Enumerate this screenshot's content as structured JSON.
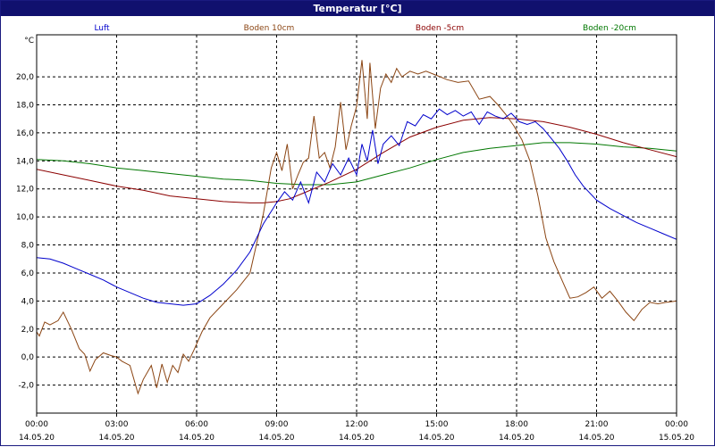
{
  "window": {
    "title": "Temperatur [°C]"
  },
  "chart_data": {
    "type": "line",
    "title": "Temperatur [°C]",
    "ylabel": "°C",
    "xlabel": "",
    "ylim": [
      -4,
      23
    ],
    "xlim": [
      0,
      24
    ],
    "grid": true,
    "legend_position": "top",
    "yticks": [
      -2,
      0,
      2,
      4,
      6,
      8,
      10,
      12,
      14,
      16,
      18,
      20
    ],
    "ytick_labels": [
      "-2,0",
      "0,0",
      "2,0",
      "4,0",
      "6,0",
      "8,0",
      "10,0",
      "12,0",
      "14,0",
      "16,0",
      "18,0",
      "20,0"
    ],
    "xticks": [
      0,
      3,
      6,
      9,
      12,
      15,
      18,
      21,
      24
    ],
    "xtick_time_labels": [
      "00:00",
      "03:00",
      "06:00",
      "09:00",
      "12:00",
      "15:00",
      "18:00",
      "21:00",
      "00:00"
    ],
    "xtick_date_labels": [
      "14.05.20",
      "14.05.20",
      "14.05.20",
      "14.05.20",
      "14.05.20",
      "14.05.20",
      "14.05.20",
      "14.05.20",
      "15.05.20"
    ],
    "series": [
      {
        "name": "Luft",
        "color": "#0000cc",
        "x": [
          0,
          0.5,
          1,
          1.5,
          2,
          2.5,
          3,
          3.5,
          4,
          4.5,
          5,
          5.5,
          6,
          6.5,
          7,
          7.5,
          8,
          8.5,
          9,
          9.3,
          9.6,
          9.9,
          10.2,
          10.5,
          10.8,
          11.1,
          11.4,
          11.7,
          12,
          12.2,
          12.4,
          12.6,
          12.8,
          13,
          13.3,
          13.6,
          13.9,
          14.2,
          14.5,
          14.8,
          15.1,
          15.4,
          15.7,
          16,
          16.3,
          16.6,
          16.9,
          17.2,
          17.5,
          17.8,
          18.1,
          18.4,
          18.7,
          19,
          19.3,
          19.6,
          19.9,
          20.2,
          20.5,
          21,
          21.5,
          22,
          22.5,
          23,
          23.5,
          24
        ],
        "values": [
          7.1,
          7.0,
          6.7,
          6.3,
          5.9,
          5.5,
          5.0,
          4.6,
          4.2,
          3.9,
          3.8,
          3.7,
          3.8,
          4.4,
          5.2,
          6.2,
          7.5,
          9.5,
          11.0,
          11.8,
          11.2,
          12.5,
          11.0,
          13.2,
          12.5,
          13.8,
          13.0,
          14.2,
          13.0,
          15.2,
          14.0,
          16.2,
          13.8,
          15.2,
          15.8,
          15.1,
          16.8,
          16.5,
          17.3,
          17.0,
          17.7,
          17.3,
          17.6,
          17.2,
          17.5,
          16.6,
          17.5,
          17.2,
          17.0,
          17.4,
          16.8,
          16.6,
          16.8,
          16.3,
          15.6,
          14.9,
          14.0,
          13.0,
          12.2,
          11.2,
          10.6,
          10.1,
          9.6,
          9.2,
          8.8,
          8.4
        ]
      },
      {
        "name": "Boden 10cm",
        "color": "#8b4513",
        "x": [
          0,
          0.1,
          0.3,
          0.5,
          0.8,
          1,
          1.3,
          1.6,
          1.8,
          2,
          2.2,
          2.5,
          2.8,
          3,
          3.2,
          3.5,
          3.8,
          4,
          4.3,
          4.5,
          4.7,
          4.9,
          5.1,
          5.3,
          5.5,
          5.7,
          5.9,
          6.2,
          6.5,
          7,
          7.5,
          8,
          8.5,
          8.8,
          9,
          9.2,
          9.4,
          9.6,
          9.8,
          10,
          10.2,
          10.4,
          10.6,
          10.8,
          11,
          11.2,
          11.4,
          11.6,
          11.8,
          12,
          12.2,
          12.4,
          12.5,
          12.7,
          12.9,
          13.1,
          13.3,
          13.5,
          13.7,
          14,
          14.3,
          14.6,
          15,
          15.4,
          15.8,
          16.2,
          16.6,
          17,
          17.3,
          17.6,
          17.9,
          18.2,
          18.5,
          18.8,
          19.1,
          19.4,
          19.7,
          20,
          20.3,
          20.6,
          20.9,
          21.2,
          21.5,
          21.8,
          22.1,
          22.4,
          22.7,
          23,
          23.3,
          23.6,
          24
        ],
        "values": [
          1.8,
          1.5,
          2.5,
          2.3,
          2.6,
          3.2,
          2.0,
          0.6,
          0.2,
          -1.0,
          -0.2,
          0.3,
          0.1,
          0.0,
          -0.3,
          -0.6,
          -2.6,
          -1.6,
          -0.6,
          -2.2,
          -0.5,
          -1.8,
          -0.6,
          -1.1,
          0.2,
          -0.3,
          0.5,
          1.8,
          2.8,
          3.8,
          4.8,
          6.0,
          10.2,
          13.5,
          14.6,
          13.3,
          15.2,
          12.0,
          13.0,
          13.9,
          14.2,
          17.2,
          14.2,
          14.6,
          13.5,
          15.0,
          18.2,
          14.8,
          16.5,
          17.9,
          21.2,
          17.0,
          21.0,
          16.3,
          19.2,
          20.2,
          19.6,
          20.6,
          20.0,
          20.4,
          20.2,
          20.4,
          20.1,
          19.8,
          19.6,
          19.7,
          18.4,
          18.6,
          18.0,
          17.3,
          16.5,
          15.5,
          14.0,
          11.5,
          8.5,
          6.8,
          5.5,
          4.2,
          4.3,
          4.6,
          5.0,
          4.2,
          4.7,
          4.0,
          3.2,
          2.6,
          3.4,
          3.9,
          3.8,
          3.9,
          4.0
        ]
      },
      {
        "name": "Boden -5cm",
        "color": "#8b0000",
        "x": [
          0,
          1,
          2,
          3,
          4,
          5,
          6,
          7,
          8,
          8.5,
          9,
          9.5,
          10,
          11,
          12,
          13,
          14,
          15,
          16,
          17,
          18,
          19,
          20,
          21,
          22,
          23,
          24
        ],
        "values": [
          13.4,
          13.0,
          12.6,
          12.2,
          11.9,
          11.5,
          11.3,
          11.1,
          11.0,
          11.0,
          11.1,
          11.3,
          11.7,
          12.5,
          13.4,
          14.6,
          15.7,
          16.4,
          16.9,
          17.1,
          17.0,
          16.8,
          16.4,
          15.9,
          15.3,
          14.8,
          14.3
        ]
      },
      {
        "name": "Boden -20cm",
        "color": "#007700",
        "x": [
          0,
          1,
          2,
          3,
          4,
          5,
          6,
          7,
          8,
          9,
          10,
          11,
          12,
          13,
          14,
          15,
          16,
          17,
          18,
          19,
          20,
          21,
          22,
          23,
          24
        ],
        "values": [
          14.1,
          14.0,
          13.8,
          13.5,
          13.3,
          13.1,
          12.9,
          12.7,
          12.6,
          12.4,
          12.3,
          12.3,
          12.5,
          13.0,
          13.5,
          14.1,
          14.6,
          14.9,
          15.1,
          15.3,
          15.3,
          15.2,
          15.0,
          14.9,
          14.7
        ]
      }
    ]
  }
}
